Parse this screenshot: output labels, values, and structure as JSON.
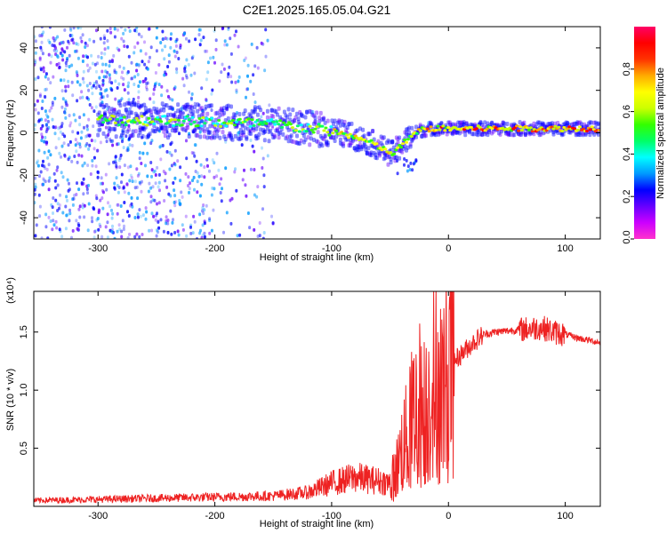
{
  "chart_data": [
    {
      "type": "heatmap",
      "title": "C2E1.2025.165.05.04.G21",
      "xlabel": "Height of straight line (km)",
      "ylabel": "Frequency (Hz)",
      "xlim": [
        -355,
        130
      ],
      "ylim": [
        -50,
        50
      ],
      "xticks": [
        -300,
        -200,
        -100,
        0,
        100
      ],
      "yticks": [
        -40,
        -20,
        0,
        20,
        40
      ],
      "colorbar": {
        "label": "Normalized spectral amplitude",
        "range": [
          0,
          1
        ],
        "ticks": [
          "0.0",
          "0.2",
          "0.4",
          "0.6",
          "0.8"
        ],
        "colors": [
          "#ff33cc",
          "#cc00ff",
          "#6600ff",
          "#0000ff",
          "#0099ff",
          "#00ffff",
          "#00ff66",
          "#33ff00",
          "#ccff00",
          "#ffff00",
          "#ffaa00",
          "#ff3300",
          "#ff0000",
          "#ff0066"
        ]
      },
      "ridge": {
        "x": [
          -300,
          -250,
          -200,
          -150,
          -100,
          -80,
          -65,
          -55,
          -48,
          -42,
          -35,
          -25,
          -15,
          0,
          50,
          100,
          130
        ],
        "frequency": [
          6,
          6,
          5,
          4,
          1,
          -2,
          -5,
          -8,
          -10,
          -7,
          -3,
          1,
          2,
          2,
          2,
          2,
          2
        ]
      }
    },
    {
      "type": "line",
      "xlabel": "Height of straight line (km)",
      "ylabel": "SNR (10 * v/v)",
      "y_multiplier": "(x10⁴)",
      "xlim": [
        -355,
        130
      ],
      "ylim": [
        0,
        18500
      ],
      "xticks": [
        -300,
        -200,
        -100,
        0,
        100
      ],
      "yticks": [
        5000,
        10000,
        15000
      ],
      "ytick_labels": [
        "0.5",
        "1.0",
        "1.5"
      ],
      "line_color": "#ee2222",
      "series": [
        {
          "x": [
            -355,
            -300,
            -250,
            -200,
            -150,
            -120,
            -100,
            -80,
            -60,
            -50,
            -45,
            -40,
            -35,
            -30,
            -25,
            -20,
            -15,
            -10,
            -5,
            0,
            5,
            10,
            20,
            30,
            40,
            50,
            60,
            70,
            80,
            90,
            100,
            110,
            120,
            130
          ],
          "values": [
            500,
            600,
            700,
            800,
            900,
            1200,
            2000,
            2500,
            2200,
            2000,
            3000,
            5000,
            6000,
            8000,
            9000,
            8000,
            10000,
            11000,
            10000,
            12000,
            12500,
            13000,
            14000,
            14800,
            15000,
            15100,
            15200,
            15300,
            15400,
            15000,
            14800,
            14500,
            14300,
            14100
          ]
        }
      ]
    }
  ]
}
